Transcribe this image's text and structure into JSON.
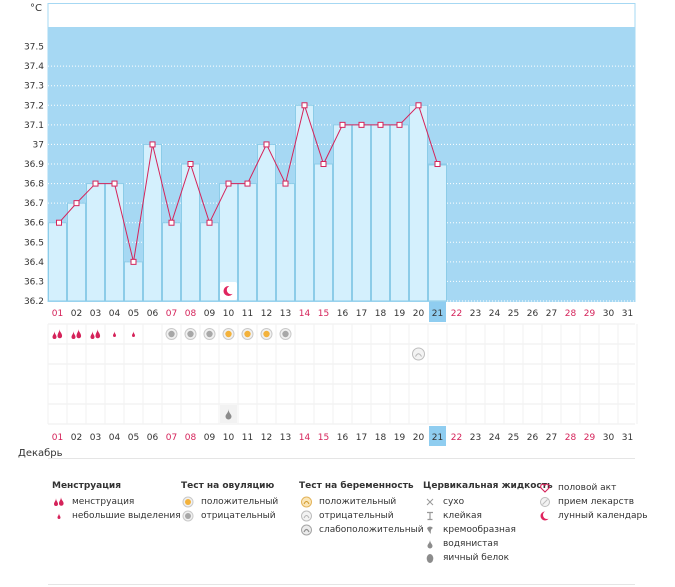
{
  "chart_data": {
    "type": "bar",
    "unit_label": "°C",
    "ylim": [
      36.2,
      37.6
    ],
    "y_ticks": [
      "37.5",
      "37.4",
      "37.3",
      "37.2",
      "37.1",
      "37",
      "36.9",
      "36.8",
      "36.7",
      "36.6",
      "36.5",
      "36.4",
      "36.3",
      "36.2"
    ],
    "days": [
      "01",
      "02",
      "03",
      "04",
      "05",
      "06",
      "07",
      "08",
      "09",
      "10",
      "11",
      "12",
      "13",
      "14",
      "15",
      "16",
      "17",
      "18",
      "19",
      "20",
      "21",
      "22",
      "23",
      "24",
      "25",
      "26",
      "27",
      "28",
      "29",
      "30",
      "31"
    ],
    "weekend_days": [
      "01",
      "07",
      "08",
      "14",
      "15",
      "22",
      "28",
      "29"
    ],
    "today": "21",
    "temperatures": [
      36.6,
      36.7,
      36.8,
      36.8,
      36.4,
      37.0,
      36.6,
      36.9,
      36.6,
      36.8,
      36.8,
      37.0,
      36.8,
      37.2,
      36.9,
      37.1,
      37.1,
      37.1,
      37.1,
      37.2,
      36.9
    ],
    "coverline_segments": [
      [
        12,
        17
      ],
      [
        20,
        21
      ]
    ],
    "lunar_marker_day": "10",
    "menstruation": {
      "heavy": [
        "01",
        "02",
        "03"
      ],
      "light": [
        "04",
        "05"
      ]
    },
    "ovulation_test": {
      "negative": [
        "07",
        "08",
        "09",
        "13"
      ],
      "positive": [
        "10",
        "11",
        "12"
      ]
    },
    "pregnancy_test": {
      "negative": [
        "20"
      ]
    },
    "cervical_fluid": {
      "watery": [
        "10"
      ]
    },
    "colors": {
      "sky": "#a6d8f3",
      "bar": "#d4f0fd",
      "bar_border": "#8ccce8",
      "line": "#d5235a",
      "today": "#8fcdf0",
      "weekend": "#d5235a"
    }
  },
  "month": "Декабрь",
  "legend": {
    "menstruation": {
      "title": "Менструация",
      "items": [
        "менструация",
        "небольшие выделения"
      ]
    },
    "ovulation": {
      "title": "Тест на овуляцию",
      "items": [
        "положительный",
        "отрицательный"
      ]
    },
    "pregnancy": {
      "title": "Тест на беременность",
      "items": [
        "положительный",
        "отрицательный",
        "слабоположительный"
      ]
    },
    "cervical": {
      "title": "Цервикальная жидкость",
      "items": [
        "сухо",
        "клейкая",
        "кремообразная",
        "водянистая",
        "яичный белок"
      ]
    },
    "other": {
      "items": [
        "половой акт",
        "прием лекарств",
        "лунный календарь"
      ]
    }
  }
}
